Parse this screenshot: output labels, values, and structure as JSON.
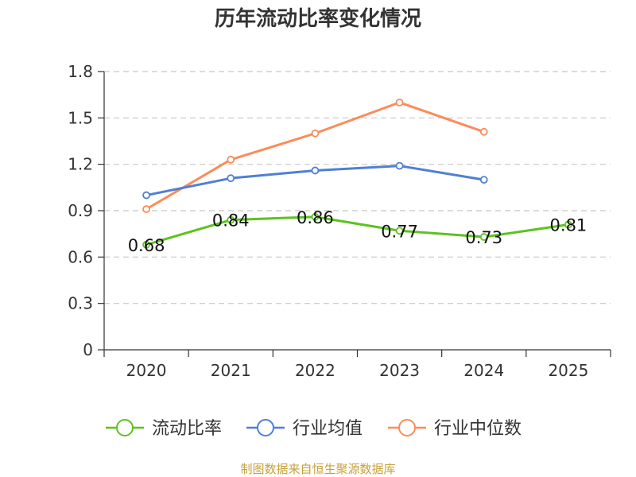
{
  "chart_data": {
    "type": "line",
    "title": "历年流动比率变化情况",
    "categories": [
      "2020",
      "2021",
      "2022",
      "2023",
      "2024",
      "2025"
    ],
    "yticks": [
      "0",
      "0.3",
      "0.6",
      "0.9",
      "1.2",
      "1.5",
      "1.8"
    ],
    "ylim": [
      0,
      1.8
    ],
    "grid": true,
    "legend_position": "bottom",
    "series": [
      {
        "name": "流动比率",
        "color": "#5cc31e",
        "values": [
          0.68,
          0.84,
          0.86,
          0.77,
          0.73,
          0.81
        ],
        "labels": [
          "0.68",
          "0.84",
          "0.86",
          "0.77",
          "0.73",
          "0.81"
        ]
      },
      {
        "name": "行业均值",
        "color": "#4f7fd6",
        "values": [
          1.0,
          1.11,
          1.16,
          1.19,
          1.1,
          null
        ]
      },
      {
        "name": "行业中位数",
        "color": "#fb8c5a",
        "values": [
          0.91,
          1.23,
          1.4,
          1.6,
          1.41,
          null
        ]
      }
    ],
    "source": "制图数据来自恒生聚源数据库"
  }
}
